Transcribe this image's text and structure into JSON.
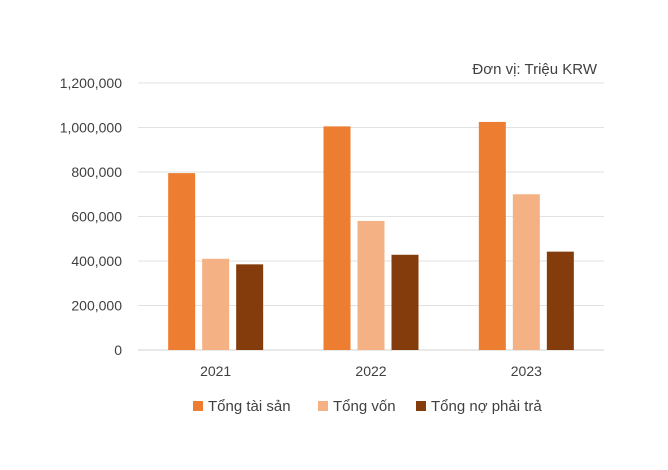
{
  "chart_data": {
    "type": "bar",
    "unit_label": "Đơn vị: Triệu KRW",
    "categories": [
      "2021",
      "2022",
      "2023"
    ],
    "series": [
      {
        "name": "Tổng tài sản",
        "color": "#ED7D31",
        "values": [
          795000,
          1005000,
          1025000
        ]
      },
      {
        "name": "Tổng vốn",
        "color": "#F4B183",
        "values": [
          410000,
          580000,
          700000
        ]
      },
      {
        "name": "Tổng nợ phải trả",
        "color": "#843C0C",
        "values": [
          385000,
          428000,
          442000
        ]
      }
    ],
    "yticks": [
      "0",
      "200,000",
      "400,000",
      "600,000",
      "800,000",
      "1,000,000",
      "1,200,000"
    ],
    "ylim": [
      0,
      1200000
    ],
    "grid": true,
    "legend": "bottom"
  }
}
